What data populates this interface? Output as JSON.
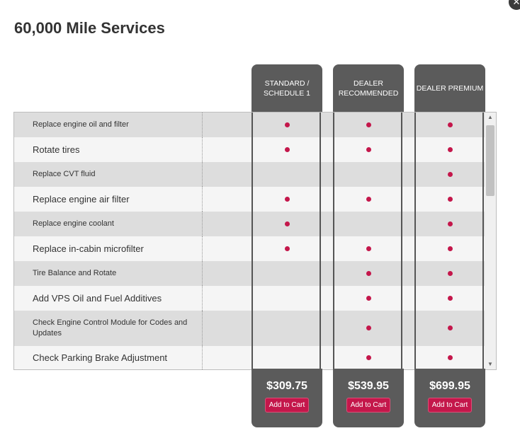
{
  "title": "60,000 Mile Services",
  "close_glyph": "✕",
  "columns": [
    {
      "label": "STANDARD / SCHEDULE 1",
      "price": "$309.75",
      "cart_label": "Add to Cart"
    },
    {
      "label": "DEALER RECOMMENDED",
      "price": "$539.95",
      "cart_label": "Add to Cart"
    },
    {
      "label": "DEALER PREMIUM",
      "price": "$699.95",
      "cart_label": "Add to Cart"
    }
  ],
  "services": [
    {
      "name": "Replace engine oil and filter",
      "included": [
        true,
        true,
        true
      ]
    },
    {
      "name": "Rotate tires",
      "included": [
        true,
        true,
        true
      ]
    },
    {
      "name": "Replace CVT fluid",
      "included": [
        false,
        false,
        true
      ]
    },
    {
      "name": "Replace engine air filter",
      "included": [
        true,
        true,
        true
      ]
    },
    {
      "name": "Replace engine coolant",
      "included": [
        true,
        false,
        true
      ]
    },
    {
      "name": "Replace in-cabin microfilter",
      "included": [
        true,
        true,
        true
      ]
    },
    {
      "name": "Tire Balance and Rotate",
      "included": [
        false,
        true,
        true
      ]
    },
    {
      "name": "Add VPS Oil and Fuel Additives",
      "included": [
        false,
        true,
        true
      ]
    },
    {
      "name": "Check Engine Control Module for Codes and Updates",
      "included": [
        false,
        true,
        true
      ]
    },
    {
      "name": "Check Parking Brake Adjustment",
      "included": [
        false,
        true,
        true
      ]
    }
  ],
  "colors": {
    "accent": "#c4174b",
    "header_bg": "#5b5b5b",
    "row_dark": "#dddddd",
    "row_light": "#f5f5f5"
  },
  "scroll": {
    "up_glyph": "▲",
    "down_glyph": "▼"
  }
}
